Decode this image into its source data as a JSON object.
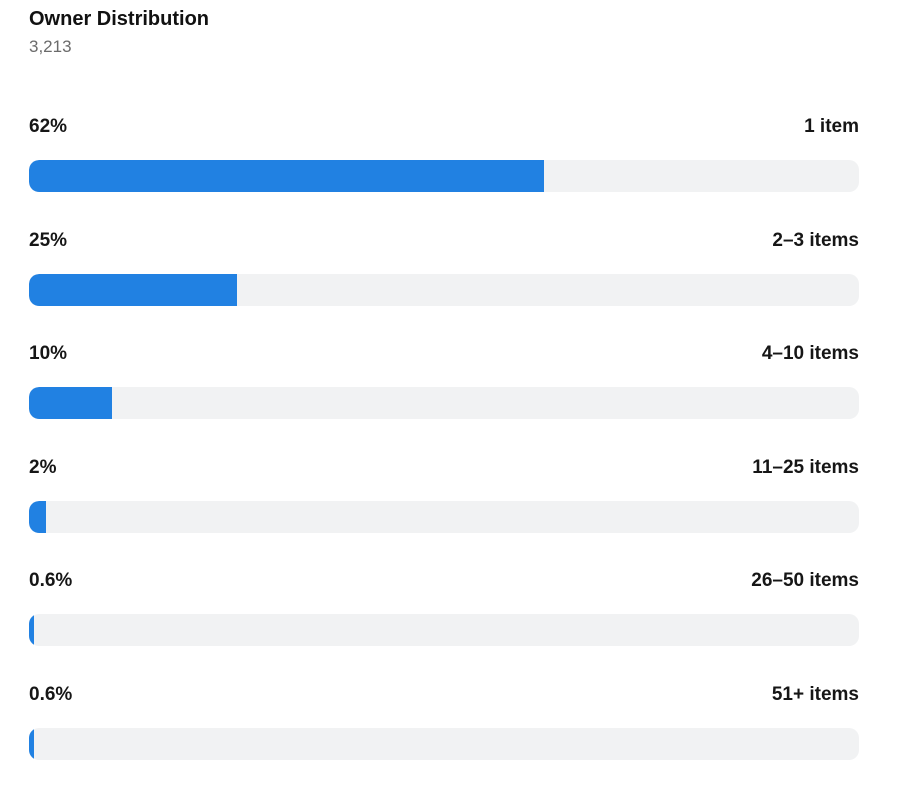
{
  "header": {
    "title": "Owner Distribution",
    "total": "3,213"
  },
  "colors": {
    "fill": "#2181e2",
    "track": "#f1f2f3"
  },
  "chart_data": {
    "type": "bar",
    "orientation": "horizontal",
    "title": "Owner Distribution",
    "categories": [
      "1 item",
      "2–3 items",
      "4–10 items",
      "11–25 items",
      "26–50 items",
      "51+ items"
    ],
    "value_labels": [
      "62%",
      "25%",
      "10%",
      "2%",
      "0.6%",
      "0.6%"
    ],
    "values": [
      62,
      25,
      10,
      2,
      0.6,
      0.6
    ],
    "xlim": [
      0,
      100
    ]
  }
}
